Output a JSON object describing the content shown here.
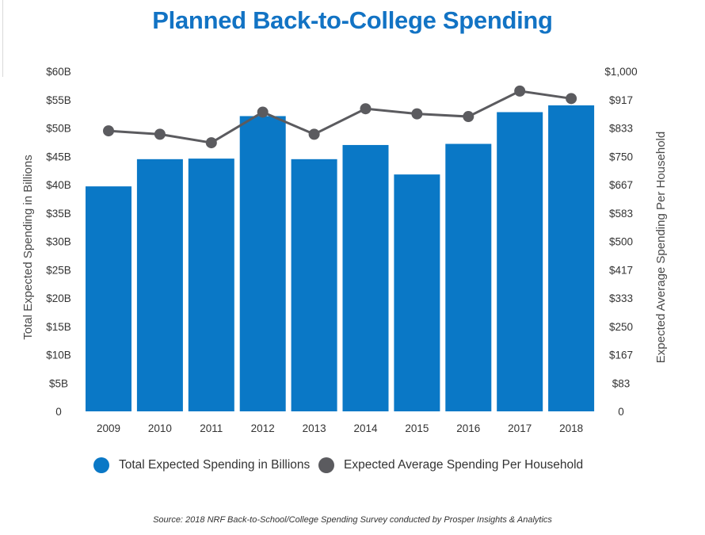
{
  "colors": {
    "title": "#1273c4",
    "bar": "#0a78c6",
    "line": "#5b5b5f"
  },
  "chart_data": {
    "type": "bar",
    "title": "Planned Back-to-College Spending",
    "categories": [
      "2009",
      "2010",
      "2011",
      "2012",
      "2013",
      "2014",
      "2015",
      "2016",
      "2017",
      "2018"
    ],
    "series": [
      {
        "name": "Total Expected Spending in Billions",
        "type": "bar",
        "axis": "left",
        "values": [
          39.7,
          44.5,
          44.6,
          52.1,
          44.5,
          47.0,
          41.8,
          47.2,
          52.8,
          54.0
        ]
      },
      {
        "name": "Expected Average Spending Per Household",
        "type": "line",
        "axis": "right",
        "values": [
          825,
          815,
          790,
          880,
          815,
          890,
          875,
          867,
          942,
          920
        ]
      }
    ],
    "y_left": {
      "label": "Total Expected Spending in Billions",
      "range": [
        0,
        60
      ],
      "ticks": [
        0,
        5,
        10,
        15,
        20,
        25,
        30,
        35,
        40,
        45,
        50,
        55,
        60
      ],
      "tick_labels": [
        "0",
        "$5B",
        "$10B",
        "$15B",
        "$20B",
        "$25B",
        "$30B",
        "$35B",
        "$40B",
        "$45B",
        "$50B",
        "$55B",
        "$60B"
      ]
    },
    "y_right": {
      "label": "Expected Average Spending Per Household",
      "range": [
        0,
        1000
      ],
      "tick_labels": [
        "0",
        "$83",
        "$167",
        "$250",
        "$333",
        "$417",
        "$500",
        "$583",
        "$667",
        "$750",
        "$833",
        "$917",
        "$1,000"
      ]
    },
    "grid": false,
    "legend_position": "bottom"
  },
  "legend": {
    "bar_label": "Total Expected Spending in Billions",
    "line_label": "Expected Average Spending Per Household"
  },
  "source": "Source: 2018 NRF Back-to-School/College Spending Survey conducted by Prosper Insights & Analytics"
}
